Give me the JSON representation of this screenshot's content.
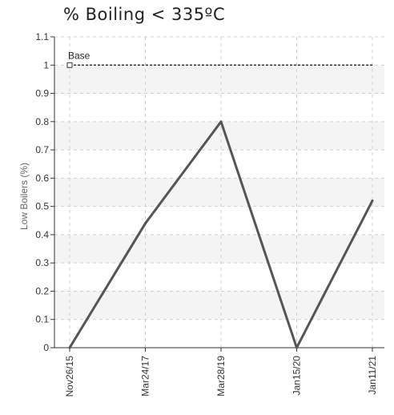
{
  "chart_data": {
    "type": "line",
    "title": "% Boiling < 335ºC",
    "xlabel": "",
    "ylabel": "Low Boilers (%)",
    "x": [
      "Nov26/15",
      "Mar24/17",
      "Mar28/19",
      "Jan15/20",
      "Jan11/21"
    ],
    "y_ticks": [
      "0",
      "0.1",
      "0.2",
      "0.3",
      "0.4",
      "0.5",
      "0.6",
      "0.7",
      "0.8",
      "0.9",
      "1",
      "1.1"
    ],
    "ylim": [
      0,
      1.1
    ],
    "grid": true,
    "series": [
      {
        "values": [
          0,
          0.44,
          0.8,
          0,
          0.52
        ],
        "color": "#555555"
      }
    ],
    "reference_line": {
      "label": "Base",
      "value": 1.0,
      "color": "#333333"
    },
    "alternating_bands": true,
    "band_color": "#f4f4f4"
  }
}
